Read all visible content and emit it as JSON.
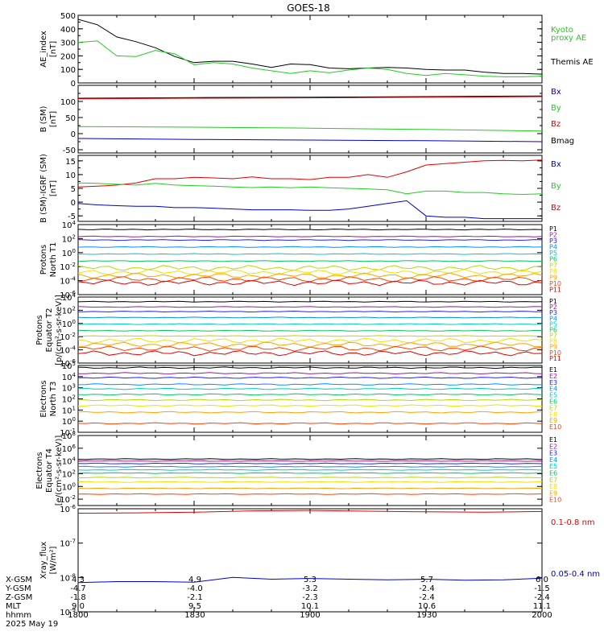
{
  "title": "GOES-18",
  "colors": {
    "black": "#000000",
    "red": "#e00000",
    "green": "#22cc22",
    "blue": "#0000cc",
    "p_colors": [
      "#000000",
      "#9a1a9a",
      "#2020ff",
      "#0090ff",
      "#00c8c8",
      "#00c860",
      "#b8d800",
      "#f0e000",
      "#ffa000",
      "#ff4000",
      "#e00000"
    ],
    "e_colors": [
      "#000000",
      "#9a1a9a",
      "#2020ff",
      "#0090ff",
      "#00c8c8",
      "#00c860",
      "#b8d800",
      "#f0e000",
      "#ffa000",
      "#ff4000",
      "#e00000"
    ]
  },
  "x_axis": {
    "rows": [
      {
        "label": "X-GSM",
        "values": [
          "4.3",
          "4.9",
          "5.3",
          "5.7",
          "6.0"
        ]
      },
      {
        "label": "Y-GSM",
        "values": [
          "-4.7",
          "-4.0",
          "-3.2",
          "-2.4",
          "-1.5"
        ]
      },
      {
        "label": "Z-GSM",
        "values": [
          "-1.8",
          "-2.1",
          "-2.3",
          "-2.4",
          "-2.4"
        ]
      },
      {
        "label": "MLT",
        "values": [
          "9.0",
          "9.5",
          "10.1",
          "10.6",
          "11.1"
        ]
      },
      {
        "label": "hhmm",
        "values": [
          "1800",
          "1830",
          "1900",
          "1930",
          "2000"
        ]
      }
    ],
    "date": "2025 May 19"
  },
  "chart_data": [
    {
      "type": "line",
      "ylabel": [
        "AE_index",
        "[nT]"
      ],
      "ylim": [
        0,
        500
      ],
      "yticks": [
        "0",
        "100",
        "200",
        "300",
        "400",
        "500"
      ],
      "legend": [
        {
          "text": "Kyoto",
          "color": "#22cc22"
        },
        {
          "text": "proxy AE",
          "color": "#22cc22"
        },
        {
          "text": "Themis AE",
          "color": "#000000"
        }
      ],
      "series": [
        {
          "name": "Themis AE",
          "color": "#000000",
          "x": [
            1800,
            1805,
            1810,
            1815,
            1820,
            1825,
            1830,
            1835,
            1840,
            1845,
            1850,
            1855,
            1900,
            1905,
            1910,
            1915,
            1920,
            1925,
            1930,
            1935,
            1940,
            1945,
            1950,
            1955,
            2000
          ],
          "values": [
            470,
            430,
            340,
            305,
            260,
            195,
            150,
            160,
            160,
            140,
            115,
            140,
            135,
            110,
            105,
            110,
            115,
            110,
            100,
            95,
            95,
            80,
            70,
            70,
            65
          ]
        },
        {
          "name": "Kyoto proxy AE",
          "color": "#22cc22",
          "x": [
            1800,
            1805,
            1810,
            1815,
            1820,
            1825,
            1830,
            1835,
            1840,
            1845,
            1850,
            1855,
            1900,
            1905,
            1910,
            1915,
            1920,
            1925,
            1930,
            1935,
            1940,
            1945,
            1950,
            1955,
            2000
          ],
          "values": [
            300,
            310,
            200,
            195,
            240,
            215,
            135,
            150,
            140,
            110,
            90,
            70,
            90,
            75,
            95,
            110,
            100,
            70,
            55,
            70,
            60,
            50,
            45,
            45,
            50
          ]
        }
      ]
    },
    {
      "type": "line",
      "ylabel": [
        "B (SM)",
        "[nT]"
      ],
      "ylim": [
        -60,
        150
      ],
      "yticks": [
        "-50",
        "0",
        "50",
        "100"
      ],
      "legend": [
        {
          "text": "Bx",
          "color": "#0000cc"
        },
        {
          "text": "By",
          "color": "#22cc22"
        },
        {
          "text": "Bz",
          "color": "#e00000"
        },
        {
          "text": "Bmag",
          "color": "#000000"
        }
      ],
      "series": [
        {
          "name": "Bmag",
          "color": "#000000",
          "x": [
            1800,
            1830,
            1900,
            1930,
            2000
          ],
          "values": [
            110,
            112,
            113,
            115,
            117
          ]
        },
        {
          "name": "Bz",
          "color": "#e00000",
          "x": [
            1800,
            1830,
            1900,
            1930,
            2000
          ],
          "values": [
            108,
            110,
            111,
            113,
            115
          ]
        },
        {
          "name": "By",
          "color": "#22cc22",
          "x": [
            1800,
            1830,
            1900,
            1930,
            2000
          ],
          "values": [
            22,
            20,
            17,
            13,
            8
          ]
        },
        {
          "name": "Bx",
          "color": "#0000cc",
          "x": [
            1800,
            1830,
            1900,
            1930,
            2000
          ],
          "values": [
            -15,
            -18,
            -20,
            -22,
            -25
          ]
        }
      ]
    },
    {
      "type": "line",
      "ylabel": [
        "B (SM)-IGRF (SM)",
        "[nT]"
      ],
      "ylim": [
        -7,
        17
      ],
      "yticks": [
        "-5",
        "0",
        "5",
        "10",
        "15"
      ],
      "legend": [
        {
          "text": "Bx",
          "color": "#0000cc"
        },
        {
          "text": "By",
          "color": "#22cc22"
        },
        {
          "text": "Bz",
          "color": "#e00000"
        }
      ],
      "series": [
        {
          "name": "Bz",
          "color": "#e00000",
          "x": [
            1800,
            1805,
            1810,
            1815,
            1820,
            1825,
            1830,
            1835,
            1840,
            1845,
            1850,
            1855,
            1900,
            1905,
            1910,
            1915,
            1920,
            1925,
            1930,
            1935,
            1940,
            1945,
            1950,
            1955,
            2000
          ],
          "values": [
            5.5,
            5.8,
            6.2,
            7,
            8.5,
            8.5,
            9,
            8.8,
            8.5,
            9.2,
            8.5,
            8.5,
            8.2,
            9,
            9,
            10,
            9,
            11,
            13.5,
            14,
            14.5,
            15,
            15.2,
            15,
            15.3
          ]
        },
        {
          "name": "By",
          "color": "#22cc22",
          "x": [
            1800,
            1805,
            1810,
            1815,
            1820,
            1825,
            1830,
            1835,
            1840,
            1845,
            1850,
            1855,
            1900,
            1905,
            1910,
            1915,
            1920,
            1925,
            1930,
            1935,
            1940,
            1945,
            1950,
            1955,
            2000
          ],
          "values": [
            7,
            6.8,
            6.5,
            6.2,
            6.8,
            6.2,
            6,
            5.8,
            5.5,
            5.3,
            5.5,
            5.2,
            5.5,
            5.2,
            5,
            4.8,
            4.5,
            3,
            4,
            4,
            3.5,
            3.5,
            3,
            2.8,
            3
          ]
        },
        {
          "name": "Bx",
          "color": "#0000cc",
          "x": [
            1800,
            1805,
            1810,
            1815,
            1820,
            1825,
            1830,
            1835,
            1840,
            1845,
            1850,
            1855,
            1900,
            1905,
            1910,
            1915,
            1920,
            1925,
            1930,
            1935,
            1940,
            1945,
            1950,
            1955,
            2000
          ],
          "values": [
            -0.5,
            -1,
            -1.3,
            -1.5,
            -1.5,
            -2,
            -2,
            -2.2,
            -2.5,
            -2.8,
            -2.8,
            -2.8,
            -3,
            -3,
            -2.5,
            -1.5,
            -0.5,
            0.5,
            -5,
            -5.5,
            -5.5,
            -6,
            -6,
            -6,
            -6
          ]
        }
      ]
    },
    {
      "type": "line",
      "scale": "log",
      "ylabel": [
        "Protons",
        "North T1"
      ],
      "ylim_exp": [
        -6,
        4
      ],
      "yticks": [
        "10^-6",
        "10^-4",
        "10^-2",
        "10^0",
        "10^2",
        "10^4"
      ],
      "legend": [
        {
          "text": "P1"
        },
        {
          "text": "P2"
        },
        {
          "text": "P3"
        },
        {
          "text": "P4"
        },
        {
          "text": "P5"
        },
        {
          "text": "P6"
        },
        {
          "text": "P7"
        },
        {
          "text": "P8"
        },
        {
          "text": "P9"
        },
        {
          "text": "P10"
        },
        {
          "text": "P11"
        }
      ],
      "series": [
        {
          "name": "P1",
          "level": 3.3
        },
        {
          "name": "P2",
          "level": 2.3
        },
        {
          "name": "P3",
          "level": 1.8
        },
        {
          "name": "P4",
          "level": 0.8
        },
        {
          "name": "P5",
          "level": -0.2
        },
        {
          "name": "P6",
          "level": -1.2
        },
        {
          "name": "P7",
          "level": -2.2
        },
        {
          "name": "P8",
          "level": -2.8
        },
        {
          "name": "P9",
          "level": -3.3
        },
        {
          "name": "P10",
          "level": -3.8
        },
        {
          "name": "P11",
          "level": -4.3
        }
      ]
    },
    {
      "type": "line",
      "scale": "log",
      "ylabel": [
        "Protons",
        "Equator T2",
        "[p/(cm²-s-sr-keV)]"
      ],
      "ylim_exp": [
        -6,
        4
      ],
      "yticks": [
        "10^-6",
        "10^-4",
        "10^-2",
        "10^0",
        "10^2",
        "10^4"
      ],
      "legend": [
        {
          "text": "P1"
        },
        {
          "text": "P2"
        },
        {
          "text": "P3"
        },
        {
          "text": "P4"
        },
        {
          "text": "P5"
        },
        {
          "text": "P6"
        },
        {
          "text": "P7"
        },
        {
          "text": "P8"
        },
        {
          "text": "P9"
        },
        {
          "text": "P10"
        },
        {
          "text": "P11"
        }
      ],
      "series": [
        {
          "name": "P1",
          "level": 3.3
        },
        {
          "name": "P2",
          "level": 2.5
        },
        {
          "name": "P3",
          "level": 1.8
        },
        {
          "name": "P4",
          "level": 0.9
        },
        {
          "name": "P5",
          "level": -0.1
        },
        {
          "name": "P6",
          "level": -1.1
        },
        {
          "name": "P7",
          "level": -1.9
        },
        {
          "name": "P8",
          "level": -2.6
        },
        {
          "name": "P9",
          "level": -3.2
        },
        {
          "name": "P10",
          "level": -3.8
        },
        {
          "name": "P11",
          "level": -4.5
        }
      ]
    },
    {
      "type": "line",
      "scale": "log",
      "ylabel": [
        "Electrons",
        "North T3"
      ],
      "ylim_exp": [
        -1,
        5
      ],
      "yticks": [
        "10^-1",
        "10^0",
        "10^1",
        "10^2",
        "10^3",
        "10^4",
        "10^5"
      ],
      "legend": [
        {
          "text": "E1"
        },
        {
          "text": "E2"
        },
        {
          "text": "E3"
        },
        {
          "text": "E4"
        },
        {
          "text": "E5"
        },
        {
          "text": "E6"
        },
        {
          "text": "E7"
        },
        {
          "text": "E8"
        },
        {
          "text": "E9"
        },
        {
          "text": "E10"
        }
      ],
      "series": [
        {
          "name": "E1",
          "level": 4.8
        },
        {
          "name": "E2",
          "level": 4.3
        },
        {
          "name": "E3",
          "level": 3.9
        },
        {
          "name": "E4",
          "level": 3.3
        },
        {
          "name": "E5",
          "level": 2.9
        },
        {
          "name": "E6",
          "level": 2.4
        },
        {
          "name": "E7",
          "level": 1.9
        },
        {
          "name": "E8",
          "level": 1.4
        },
        {
          "name": "E9",
          "level": 0.8
        },
        {
          "name": "E10",
          "level": -0.2
        }
      ]
    },
    {
      "type": "line",
      "scale": "log",
      "ylabel": [
        "Electrons",
        "Equator T4",
        "[e/(cm²-s-sr-keV)]"
      ],
      "ylim_exp": [
        -3,
        8
      ],
      "yticks": [
        "10^-2",
        "10^0",
        "10^2",
        "10^4",
        "10^6",
        "10^8"
      ],
      "legend": [
        {
          "text": "E1"
        },
        {
          "text": "E2"
        },
        {
          "text": "E3"
        },
        {
          "text": "E4"
        },
        {
          "text": "E5"
        },
        {
          "text": "E6"
        },
        {
          "text": "E7"
        },
        {
          "text": "E8"
        },
        {
          "text": "E9"
        },
        {
          "text": "E10"
        }
      ],
      "series": [
        {
          "name": "E1",
          "level": 4.3
        },
        {
          "name": "E2",
          "level": 4.0
        },
        {
          "name": "E3",
          "level": 3.6
        },
        {
          "name": "E4",
          "level": 3.1
        },
        {
          "name": "E5",
          "level": 2.6
        },
        {
          "name": "E6",
          "level": 2.1
        },
        {
          "name": "E7",
          "level": 1.4
        },
        {
          "name": "E8",
          "level": 0.7
        },
        {
          "name": "E9",
          "level": -0.3
        },
        {
          "name": "E10",
          "level": -1.2
        }
      ]
    },
    {
      "type": "line",
      "scale": "log",
      "ylabel": [
        "Xray_flux",
        "[W/m²]"
      ],
      "ylim_exp": [
        -9,
        -6
      ],
      "yticks": [
        "10^-9",
        "10^-8",
        "10^-7",
        "10^-6"
      ],
      "legend": [
        {
          "text": "0.1-0.8 nm",
          "color": "#e00000"
        },
        {
          "text": "0.05-0.4 nm",
          "color": "#0000cc"
        }
      ],
      "series": [
        {
          "name": "0.1-0.8 nm",
          "color": "#e00000",
          "x": [
            1800,
            1815,
            1830,
            1845,
            1900,
            1915,
            1930,
            1945,
            2000
          ],
          "values": [
            -6.13,
            -6.12,
            -6.1,
            -6.06,
            -6.05,
            -6.07,
            -6.09,
            -6.1,
            -6.08
          ]
        },
        {
          "name": "0.05-0.4 nm",
          "color": "#0000cc",
          "x": [
            1800,
            1810,
            1820,
            1830,
            1840,
            1850,
            1900,
            1910,
            1920,
            1930,
            1940,
            1950,
            2000
          ],
          "values": [
            -8.15,
            -8.12,
            -8.12,
            -8.14,
            -8.0,
            -8.05,
            -8.03,
            -8.05,
            -8.07,
            -8.05,
            -8.08,
            -8.07,
            -8.02
          ]
        }
      ]
    }
  ]
}
